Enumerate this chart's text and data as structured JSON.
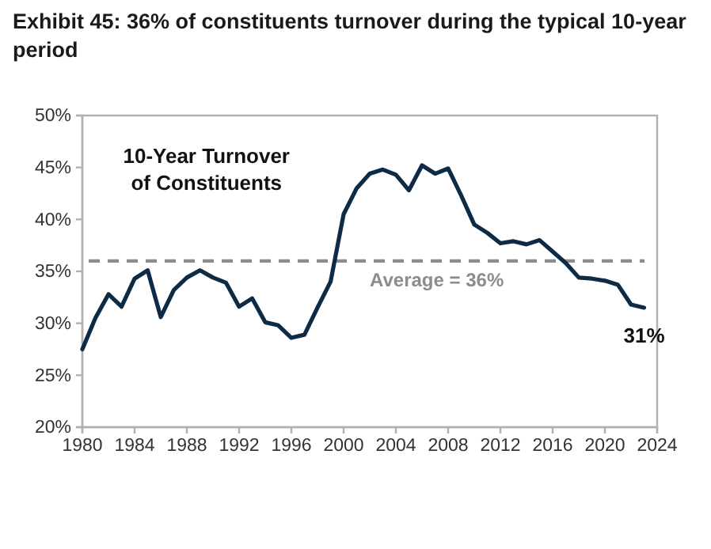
{
  "chart_data": {
    "type": "line",
    "title": "Exhibit 45: 36% of constituents turnover during the typical 10-year period",
    "x": [
      1980,
      1981,
      1982,
      1983,
      1984,
      1985,
      1986,
      1987,
      1988,
      1989,
      1990,
      1991,
      1992,
      1993,
      1994,
      1995,
      1996,
      1997,
      1998,
      1999,
      2000,
      2001,
      2002,
      2003,
      2004,
      2005,
      2006,
      2007,
      2008,
      2009,
      2010,
      2011,
      2012,
      2013,
      2014,
      2015,
      2016,
      2017,
      2018,
      2019,
      2020,
      2021,
      2022,
      2023
    ],
    "series": [
      {
        "color": "#0d2b45",
        "values": [
          27.5,
          30.5,
          32.8,
          31.6,
          34.3,
          35.1,
          30.6,
          33.2,
          34.4,
          35.1,
          34.4,
          33.9,
          31.6,
          32.4,
          30.1,
          29.8,
          28.6,
          28.9,
          31.5,
          34.0,
          40.5,
          43.0,
          44.4,
          44.8,
          44.3,
          42.8,
          45.2,
          44.4,
          44.9,
          42.3,
          39.5,
          38.7,
          37.7,
          37.9,
          37.6,
          38.0,
          36.9,
          35.8,
          34.4,
          34.3,
          34.1,
          33.7,
          31.8,
          31.5
        ]
      }
    ],
    "xlim": [
      1980,
      2024
    ],
    "xticks": [
      1980,
      1984,
      1988,
      1992,
      1996,
      2000,
      2004,
      2008,
      2012,
      2016,
      2020,
      2024
    ],
    "ylim": [
      20,
      50
    ],
    "yticks": [
      {
        "value": 20,
        "label": "20%"
      },
      {
        "value": 25,
        "label": "25%"
      },
      {
        "value": 30,
        "label": "30%"
      },
      {
        "value": 35,
        "label": "35%"
      },
      {
        "value": 40,
        "label": "40%"
      },
      {
        "value": 45,
        "label": "45%"
      },
      {
        "value": 50,
        "label": "50%"
      }
    ],
    "ref_lines": [
      {
        "axis": "y",
        "value": 36,
        "label": "Average = 36%",
        "color": "#8c8c8c",
        "line_style": "dashed"
      }
    ],
    "annotations": [
      "10-Year Turnover of Constituents",
      {
        "text": "31%",
        "x": 2023,
        "y": 31.5
      }
    ],
    "grid": false,
    "marker": "none",
    "line_style": "solid"
  }
}
